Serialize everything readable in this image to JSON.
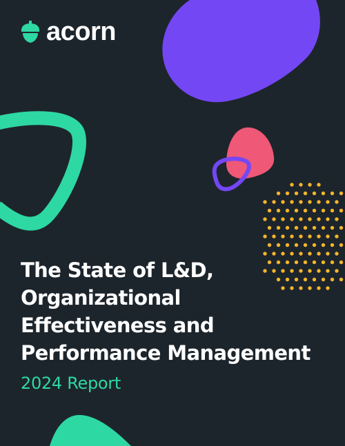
{
  "brand": {
    "name": "acorn",
    "logo_icon": "acorn-icon"
  },
  "cover": {
    "title_lines": [
      "The State of L&D,",
      "Organizational",
      "Effectiveness and",
      "Performance Management"
    ],
    "subtitle": "2024 Report"
  },
  "colors": {
    "background": "#1d252c",
    "purple": "#7447f5",
    "teal": "#2ed8a3",
    "pink": "#ef5876",
    "yellow": "#f5b52a",
    "text": "#ffffff"
  }
}
